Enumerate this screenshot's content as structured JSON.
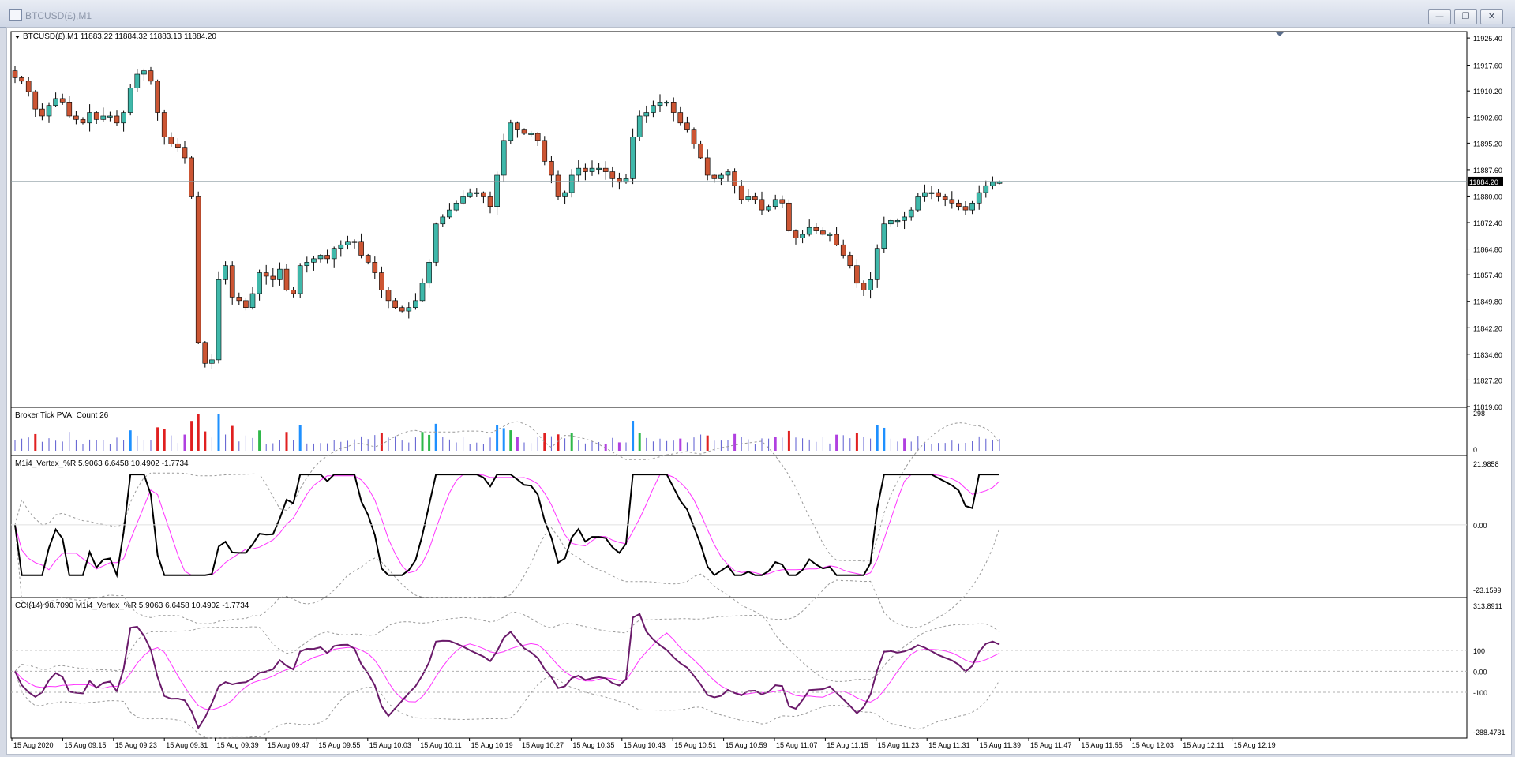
{
  "window": {
    "title": "BTCUSD(£),M1",
    "minimize_glyph": "—",
    "restore_glyph": "❐",
    "close_glyph": "✕"
  },
  "colors": {
    "bull": "#3fb8aa",
    "bear": "#cc5533",
    "wick": "#000000",
    "cci_line": "#6a1a6a",
    "signal": "#ff33ff",
    "bands": "#9a9a9a",
    "oscillator": "#000000"
  },
  "main_panel": {
    "header": "BTCUSD(£),M1  11883.22 11884.32 11883.13 11884.20",
    "current_price": "11884.20",
    "y_ticks": [
      "11925.40",
      "11917.60",
      "11910.20",
      "11902.60",
      "11895.20",
      "11887.60",
      "11880.00",
      "11872.40",
      "11864.80",
      "11857.40",
      "11849.80",
      "11842.20",
      "11834.60",
      "11827.20",
      "11819.60"
    ]
  },
  "volume_panel": {
    "header": "Broker Tick PVA:    Count  26",
    "y_ticks": [
      "298",
      "0"
    ]
  },
  "wr_panel": {
    "header": "M1i4_Vertex_%R 5.9063 6.6458 10.4902 -1.7734",
    "y_ticks": [
      "21.9858",
      "0.00",
      "-23.1599"
    ]
  },
  "cci_panel": {
    "header": "CCI(14) 98.7090  M1i4_Vertex_%R 5.9063 6.6458 10.4902 -1.7734",
    "y_ticks": [
      "313.8911",
      "100",
      "0.00",
      "-100",
      "-288.4731"
    ]
  },
  "time_axis": [
    "15 Aug 2020",
    "15 Aug 09:15",
    "15 Aug 09:23",
    "15 Aug 09:31",
    "15 Aug 09:39",
    "15 Aug 09:47",
    "15 Aug 09:55",
    "15 Aug 10:03",
    "15 Aug 10:11",
    "15 Aug 10:19",
    "15 Aug 10:27",
    "15 Aug 10:35",
    "15 Aug 10:43",
    "15 Aug 10:51",
    "15 Aug 10:59",
    "15 Aug 11:07",
    "15 Aug 11:15",
    "15 Aug 11:23",
    "15 Aug 11:31",
    "15 Aug 11:39",
    "15 Aug 11:47",
    "15 Aug 11:55",
    "15 Aug 12:03",
    "15 Aug 12:11",
    "15 Aug 12:19"
  ],
  "chart_data": [
    {
      "type": "candlestick",
      "title": "BTCUSD(£),M1",
      "ylim": [
        11819.6,
        11925.4
      ],
      "closes": [
        11914,
        11913,
        11910,
        11905,
        11903,
        11906,
        11908,
        11907,
        11903,
        11902,
        11901,
        11904,
        11902,
        11903,
        11903,
        11901,
        11904,
        11911,
        11915,
        11916,
        11913,
        11904,
        11897,
        11895,
        11894,
        11891,
        11880,
        11838,
        11832,
        11833,
        11856,
        11860,
        11851,
        11850,
        11848,
        11852,
        11858,
        11857,
        11856,
        11859,
        11853,
        11852,
        11860,
        11861,
        11862,
        11863,
        11862,
        11865,
        11866,
        11867,
        11867,
        11863,
        11861,
        11858,
        11853,
        11850,
        11848,
        11847,
        11848,
        11850,
        11855,
        11861,
        11872,
        11874,
        11876,
        11878,
        11880,
        11881,
        11881,
        11880,
        11877,
        11886,
        11896,
        11901,
        11899,
        11898,
        11898,
        11896,
        11890,
        11886,
        11880,
        11881,
        11886,
        11888,
        11887,
        11888,
        11888,
        11887,
        11885,
        11884,
        11885,
        11897,
        11903,
        11904,
        11906,
        11907,
        11907,
        11904,
        11901,
        11899,
        11895,
        11891,
        11886,
        11885,
        11886,
        11887,
        11883,
        11879,
        11880,
        11879,
        11876,
        11877,
        11879,
        11878,
        11870,
        11868,
        11869,
        11871,
        11870,
        11869,
        11869,
        11866,
        11863,
        11860,
        11855,
        11853,
        11856,
        11865,
        11872,
        11873,
        11873,
        11874,
        11876,
        11880,
        11881,
        11881,
        11880,
        11879,
        11878,
        11877,
        11876,
        11878,
        11881,
        11883,
        11884,
        11884
      ],
      "volume_max": 298
    },
    {
      "type": "line",
      "title": "M1i4_Vertex_%R",
      "ylim": [
        -23.1599,
        21.9858
      ],
      "last_values": [
        5.9063,
        6.6458,
        10.4902,
        -1.7734
      ]
    },
    {
      "type": "line",
      "title": "CCI(14)",
      "ylim": [
        -288.4731,
        313.8911
      ],
      "last_value": 98.709,
      "levels": [
        100,
        0,
        -100
      ]
    }
  ]
}
